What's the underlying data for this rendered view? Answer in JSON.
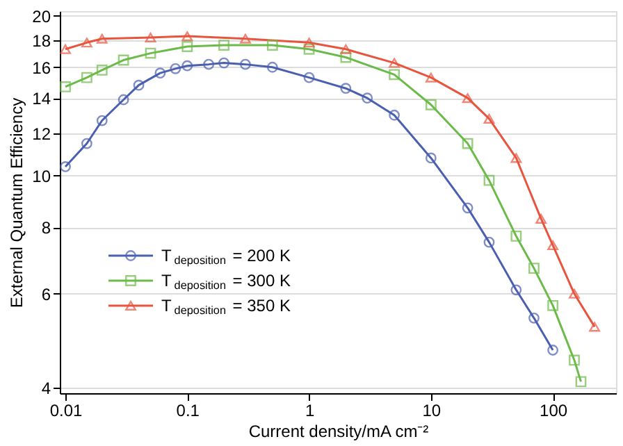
{
  "chart_data": {
    "type": "line",
    "xlabel": "Current density/mA cm⁻²",
    "ylabel": "External Quantum Efficiency",
    "log": "xy",
    "xlim": [
      0.009,
      330
    ],
    "ylim": [
      3.9,
      20.4
    ],
    "xticks": [
      0.01,
      0.1,
      1,
      10,
      100
    ],
    "yticks": [
      4,
      6,
      8,
      10,
      12,
      14,
      16,
      18,
      20
    ],
    "grid": "y",
    "legend": "bottom left",
    "series": [
      {
        "name": "T$_{deposition}$ = 200 K",
        "color": "#4a5fb0",
        "marker": "circle",
        "x": [
          0.01,
          0.015,
          0.02,
          0.03,
          0.04,
          0.06,
          0.08,
          0.1,
          0.15,
          0.2,
          0.3,
          0.5,
          1,
          2,
          3,
          5,
          10,
          20,
          30,
          50,
          70,
          100
        ],
        "values": [
          10.4,
          11.5,
          12.7,
          13.9,
          14.8,
          15.6,
          15.9,
          16.1,
          16.2,
          16.3,
          16.2,
          16.0,
          15.3,
          14.6,
          14.0,
          13.0,
          10.8,
          8.7,
          7.5,
          6.1,
          5.4,
          4.7
        ]
      },
      {
        "name": "T$_{deposition}$ = 300 K",
        "color": "#6cbb4a",
        "marker": "square",
        "x": [
          0.01,
          0.015,
          0.02,
          0.03,
          0.05,
          0.1,
          0.2,
          0.5,
          1,
          2,
          5,
          10,
          20,
          30,
          50,
          70,
          100,
          150,
          170
        ],
        "values": [
          14.7,
          15.3,
          15.8,
          16.5,
          17.0,
          17.5,
          17.6,
          17.6,
          17.3,
          16.7,
          15.5,
          13.6,
          11.5,
          9.8,
          7.7,
          6.7,
          5.7,
          4.5,
          4.1
        ]
      },
      {
        "name": "T$_{deposition}$ = 350 K",
        "color": "#e8553e",
        "marker": "triangle",
        "x": [
          0.01,
          0.015,
          0.02,
          0.05,
          0.1,
          0.3,
          1,
          2,
          5,
          10,
          20,
          30,
          50,
          80,
          100,
          150,
          220
        ],
        "values": [
          17.3,
          17.8,
          18.1,
          18.2,
          18.3,
          18.1,
          17.8,
          17.3,
          16.3,
          15.3,
          14.0,
          12.8,
          10.8,
          8.3,
          7.4,
          6.0,
          5.2
        ]
      }
    ]
  }
}
